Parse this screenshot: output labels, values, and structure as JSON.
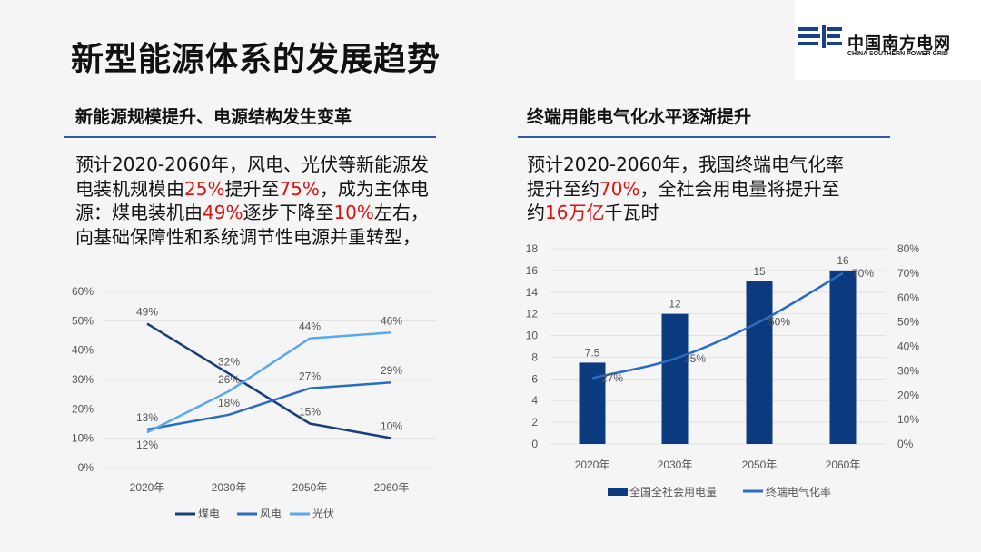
{
  "title": "新型能源体系的发展趋势",
  "logo": {
    "cn": "中国南方电网",
    "en": "CHINA SOUTHERN POWER GRID"
  },
  "left": {
    "heading": "新能源规模提升、电源结构发生变革",
    "text": [
      {
        "t": "预计2020-2060年，风电、光伏等新能源发电装机规模由"
      },
      {
        "t": "25%",
        "red": true
      },
      {
        "t": "提升至"
      },
      {
        "t": "75%",
        "red": true
      },
      {
        "t": "，成为主体电源：煤电装机由"
      },
      {
        "t": "49%",
        "red": true
      },
      {
        "t": "逐步下降至"
      },
      {
        "t": "10%",
        "red": true
      },
      {
        "t": "左右，向基础保障性和系统调节性电源并重转型，"
      }
    ]
  },
  "right": {
    "heading": "终端用能电气化水平逐渐提升",
    "text": [
      {
        "t": "预计2020-2060年，我国终端电气化率提升至约"
      },
      {
        "t": "70%",
        "red": true
      },
      {
        "t": "，全社会用电量将提升至约"
      },
      {
        "t": "16万亿",
        "red": true
      },
      {
        "t": "千瓦时"
      }
    ]
  },
  "colors": {
    "coal": "#1a3e7a",
    "wind": "#2a6cc0",
    "pv": "#5aa8ee",
    "bar": "#0b3a7e",
    "rate": "#2a6cc0",
    "accent_red": "#e01010",
    "rule": "#2f5d9e"
  },
  "chart_data": [
    {
      "type": "line",
      "categories": [
        "2020年",
        "2030年",
        "2050年",
        "2060年"
      ],
      "ylim": [
        0,
        60
      ],
      "yticks": [
        "0%",
        "10%",
        "20%",
        "30%",
        "40%",
        "50%",
        "60%"
      ],
      "grid": true,
      "legend": "bottom",
      "series": [
        {
          "name": "煤电",
          "values": [
            49,
            32,
            15,
            10
          ]
        },
        {
          "name": "风电",
          "values": [
            13,
            18,
            27,
            29
          ]
        },
        {
          "name": "光伏",
          "values": [
            12,
            26,
            44,
            46
          ]
        }
      ]
    },
    {
      "type": "bar+line",
      "categories": [
        "2020年",
        "2030年",
        "2050年",
        "2060年"
      ],
      "ylim": [
        0,
        18
      ],
      "yticks": [
        "0",
        "2",
        "4",
        "6",
        "8",
        "10",
        "12",
        "14",
        "16",
        "18"
      ],
      "y2lim": [
        0,
        80
      ],
      "y2ticks": [
        "0%",
        "10%",
        "20%",
        "30%",
        "40%",
        "50%",
        "60%",
        "70%",
        "80%"
      ],
      "grid": true,
      "legend": "bottom",
      "series": [
        {
          "name": "全国全社会用电量",
          "type": "bar",
          "values": [
            7.5,
            12,
            15,
            16
          ],
          "labels": [
            "7.5",
            "12",
            "15",
            "16"
          ]
        },
        {
          "name": "终端电气化率",
          "type": "line",
          "axis": "right",
          "values": [
            27,
            35,
            50,
            70
          ],
          "labels": [
            "27%",
            "35%",
            "50%",
            "70%"
          ]
        }
      ]
    }
  ]
}
